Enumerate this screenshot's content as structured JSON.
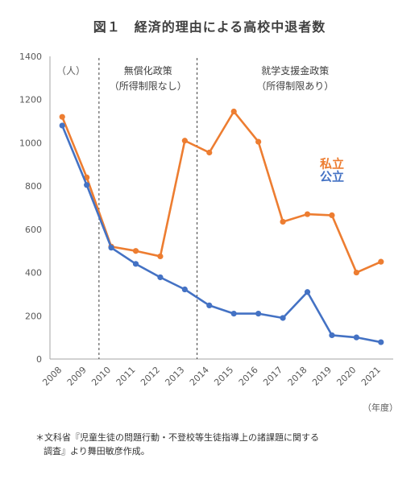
{
  "title": "図１　経済的理由による高校中退者数",
  "note": {
    "line1": "＊文科省『児童生徒の問題行動・不登校等生徒指導上の諸課題に関する",
    "line2": "調査』より舞田敏彦作成。"
  },
  "chart_data": {
    "type": "line",
    "x": [
      "2008",
      "2009",
      "2010",
      "2011",
      "2012",
      "2013",
      "2014",
      "2015",
      "2016",
      "2017",
      "2018",
      "2019",
      "2020",
      "2021"
    ],
    "series": [
      {
        "name": "私立",
        "color": "#ED7D31",
        "values": [
          1120,
          840,
          520,
          500,
          475,
          1010,
          955,
          1145,
          1005,
          635,
          670,
          665,
          400,
          450
        ]
      },
      {
        "name": "公立",
        "color": "#4472C4",
        "values": [
          1080,
          805,
          515,
          440,
          378,
          322,
          248,
          210,
          210,
          190,
          310,
          110,
          100,
          78
        ]
      }
    ],
    "ylim": [
      0,
      1400
    ],
    "yticks": [
      0,
      200,
      400,
      600,
      800,
      1000,
      1200,
      1400
    ],
    "ylabel": "（人）",
    "xlabel": "（年度）",
    "grid": false,
    "legend": "right",
    "periods": [
      {
        "line1": "無償化政策",
        "line2": "（所得制限なし）"
      },
      {
        "line1": "就学支援金政策",
        "line2": "（所得制限あり）"
      }
    ],
    "dividers_after": [
      "2009",
      "2013"
    ]
  }
}
